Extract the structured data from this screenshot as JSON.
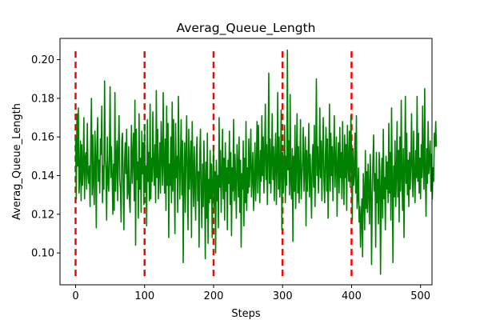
{
  "chart_data": {
    "type": "line",
    "title": "Averag_Queue_Length",
    "xlabel": "Steps",
    "ylabel": "Averag_Queue_Length",
    "xlim": [
      -22.6,
      516.6
    ],
    "ylim": [
      0.0835,
      0.211
    ],
    "x_ticks": [
      0,
      100,
      200,
      300,
      400,
      500
    ],
    "x_tick_labels": [
      "0",
      "100",
      "200",
      "300",
      "400",
      "500"
    ],
    "y_ticks": [
      0.1,
      0.12,
      0.14,
      0.16,
      0.18,
      0.2
    ],
    "y_tick_labels": [
      "0.10",
      "0.12",
      "0.14",
      "0.16",
      "0.18",
      "0.20"
    ],
    "grid": false,
    "series": [
      {
        "color": "#008000",
        "x_start": 0,
        "x_step": 1,
        "values": [
          0.16,
          0.128,
          0.172,
          0.145,
          0.175,
          0.131,
          0.139,
          0.158,
          0.127,
          0.156,
          0.135,
          0.144,
          0.17,
          0.128,
          0.149,
          0.152,
          0.133,
          0.167,
          0.141,
          0.136,
          0.145,
          0.124,
          0.157,
          0.18,
          0.13,
          0.161,
          0.136,
          0.125,
          0.163,
          0.149,
          0.113,
          0.157,
          0.17,
          0.137,
          0.148,
          0.131,
          0.159,
          0.151,
          0.176,
          0.126,
          0.145,
          0.133,
          0.189,
          0.148,
          0.143,
          0.117,
          0.16,
          0.138,
          0.132,
          0.15,
          0.186,
          0.139,
          0.155,
          0.14,
          0.12,
          0.146,
          0.122,
          0.183,
          0.132,
          0.148,
          0.158,
          0.127,
          0.153,
          0.171,
          0.138,
          0.133,
          0.116,
          0.158,
          0.162,
          0.135,
          0.112,
          0.147,
          0.157,
          0.141,
          0.164,
          0.128,
          0.131,
          0.155,
          0.128,
          0.121,
          0.143,
          0.166,
          0.136,
          0.15,
          0.162,
          0.127,
          0.179,
          0.104,
          0.164,
          0.138,
          0.147,
          0.118,
          0.172,
          0.133,
          0.149,
          0.121,
          0.163,
          0.141,
          0.157,
          0.125,
          0.166,
          0.133,
          0.145,
          0.114,
          0.169,
          0.137,
          0.152,
          0.127,
          0.177,
          0.128,
          0.149,
          0.137,
          0.173,
          0.146,
          0.135,
          0.156,
          0.126,
          0.184,
          0.139,
          0.164,
          0.128,
          0.142,
          0.157,
          0.131,
          0.168,
          0.151,
          0.135,
          0.183,
          0.146,
          0.131,
          0.159,
          0.122,
          0.176,
          0.135,
          0.167,
          0.108,
          0.146,
          0.135,
          0.16,
          0.126,
          0.178,
          0.132,
          0.169,
          0.141,
          0.11,
          0.167,
          0.139,
          0.15,
          0.121,
          0.181,
          0.15,
          0.128,
          0.146,
          0.169,
          0.13,
          0.158,
          0.095,
          0.139,
          0.157,
          0.121,
          0.151,
          0.171,
          0.138,
          0.112,
          0.164,
          0.133,
          0.145,
          0.158,
          0.108,
          0.168,
          0.142,
          0.124,
          0.155,
          0.135,
          0.117,
          0.15,
          0.16,
          0.127,
          0.142,
          0.103,
          0.151,
          0.164,
          0.13,
          0.113,
          0.146,
          0.124,
          0.158,
          0.139,
          0.097,
          0.147,
          0.118,
          0.162,
          0.105,
          0.138,
          0.126,
          0.153,
          0.128,
          0.146,
          0.108,
          0.136,
          0.155,
          0.124,
          0.142,
          0.1,
          0.148,
          0.127,
          0.14,
          0.113,
          0.17,
          0.134,
          0.153,
          0.121,
          0.141,
          0.164,
          0.128,
          0.149,
          0.117,
          0.157,
          0.132,
          0.144,
          0.112,
          0.148,
          0.136,
          0.163,
          0.125,
          0.152,
          0.109,
          0.144,
          0.132,
          0.169,
          0.127,
          0.151,
          0.137,
          0.118,
          0.156,
          0.145,
          0.129,
          0.16,
          0.121,
          0.148,
          0.103,
          0.141,
          0.133,
          0.158,
          0.114,
          0.149,
          0.126,
          0.168,
          0.122,
          0.144,
          0.131,
          0.159,
          0.134,
          0.147,
          0.164,
          0.129,
          0.14,
          0.152,
          0.122,
          0.137,
          0.157,
          0.127,
          0.143,
          0.168,
          0.131,
          0.166,
          0.144,
          0.126,
          0.153,
          0.137,
          0.171,
          0.14,
          0.16,
          0.131,
          0.15,
          0.177,
          0.138,
          0.156,
          0.125,
          0.149,
          0.193,
          0.136,
          0.159,
          0.131,
          0.147,
          0.172,
          0.138,
          0.155,
          0.127,
          0.148,
          0.162,
          0.125,
          0.145,
          0.183,
          0.133,
          0.16,
          0.129,
          0.143,
          0.174,
          0.112,
          0.152,
          0.131,
          0.142,
          0.166,
          0.126,
          0.15,
          0.135,
          0.205,
          0.143,
          0.158,
          0.13,
          0.182,
          0.137,
          0.128,
          0.154,
          0.106,
          0.15,
          0.132,
          0.166,
          0.123,
          0.146,
          0.172,
          0.131,
          0.155,
          0.126,
          0.143,
          0.169,
          0.128,
          0.139,
          0.148,
          0.165,
          0.132,
          0.144,
          0.16,
          0.114,
          0.153,
          0.132,
          0.145,
          0.167,
          0.129,
          0.151,
          0.137,
          0.118,
          0.148,
          0.156,
          0.134,
          0.166,
          0.124,
          0.147,
          0.19,
          0.14,
          0.155,
          0.131,
          0.144,
          0.175,
          0.139,
          0.158,
          0.127,
          0.151,
          0.17,
          0.137,
          0.126,
          0.149,
          0.165,
          0.132,
          0.159,
          0.118,
          0.143,
          0.177,
          0.132,
          0.162,
          0.14,
          0.155,
          0.127,
          0.15,
          0.171,
          0.134,
          0.147,
          0.16,
          0.119,
          0.144,
          0.157,
          0.131,
          0.165,
          0.139,
          0.152,
          0.128,
          0.168,
          0.142,
          0.125,
          0.161,
          0.139,
          0.156,
          0.122,
          0.166,
          0.147,
          0.137,
          0.163,
          0.134,
          0.171,
          0.15,
          0.117,
          0.154,
          0.135,
          0.141,
          0.162,
          0.131,
          0.171,
          0.123,
          0.129,
          0.144,
          0.116,
          0.124,
          0.103,
          0.119,
          0.128,
          0.098,
          0.141,
          0.131,
          0.112,
          0.153,
          0.123,
          0.142,
          0.121,
          0.146,
          0.131,
          0.115,
          0.151,
          0.137,
          0.094,
          0.128,
          0.148,
          0.161,
          0.132,
          0.141,
          0.103,
          0.152,
          0.126,
          0.138,
          0.115,
          0.152,
          0.143,
          0.089,
          0.133,
          0.149,
          0.118,
          0.164,
          0.128,
          0.139,
          0.112,
          0.15,
          0.133,
          0.147,
          0.126,
          0.167,
          0.131,
          0.152,
          0.117,
          0.175,
          0.137,
          0.095,
          0.145,
          0.129,
          0.158,
          0.124,
          0.14,
          0.168,
          0.129,
          0.153,
          0.116,
          0.16,
          0.132,
          0.179,
          0.139,
          0.122,
          0.154,
          0.108,
          0.143,
          0.181,
          0.136,
          0.162,
          0.13,
          0.148,
          0.124,
          0.152,
          0.133,
          0.146,
          0.172,
          0.138,
          0.129,
          0.163,
          0.141,
          0.126,
          0.153,
          0.139,
          0.181,
          0.137,
          0.162,
          0.131,
          0.149,
          0.128,
          0.156,
          0.139,
          0.176,
          0.145,
          0.133,
          0.185,
          0.141,
          0.119,
          0.154,
          0.136,
          0.168,
          0.141,
          0.147,
          0.158,
          0.132,
          0.151,
          0.128,
          0.144,
          0.137,
          0.162,
          0.155,
          0.168,
          0.155
        ]
      }
    ],
    "vlines": {
      "color": "#ff0000",
      "x": [
        0,
        100,
        200,
        300,
        400
      ],
      "y_range": [
        0.088,
        0.205
      ]
    }
  }
}
